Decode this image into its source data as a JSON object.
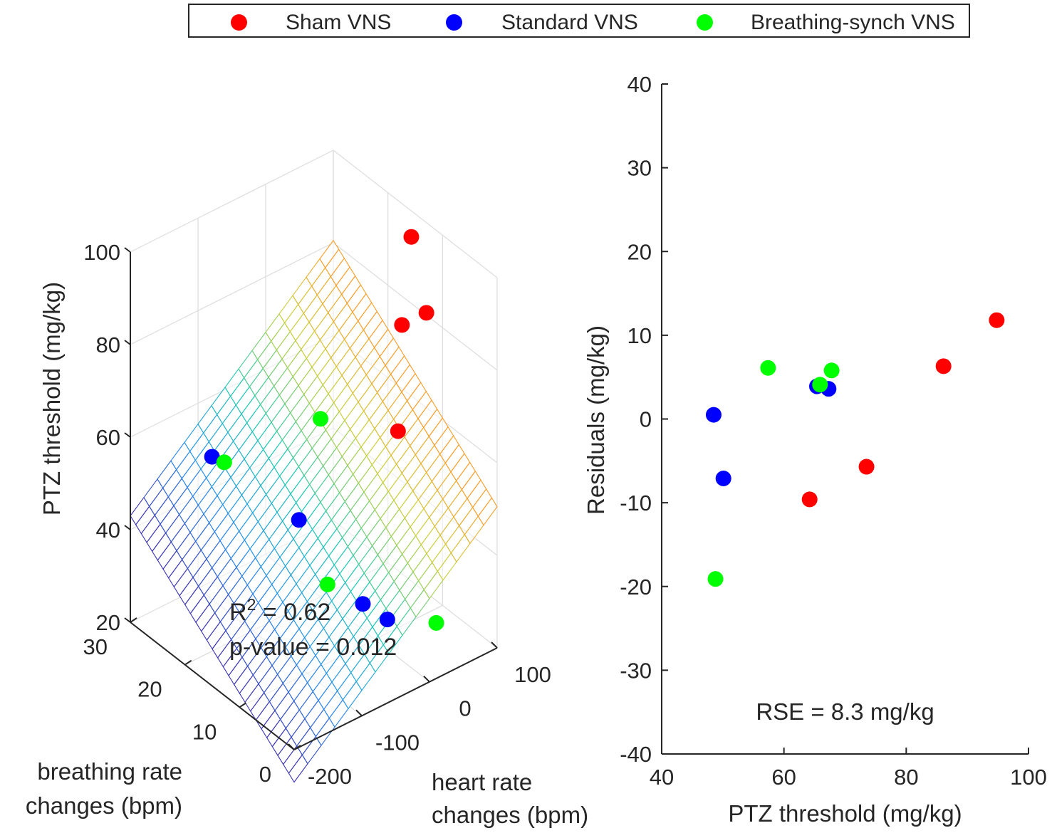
{
  "legend": {
    "items": [
      {
        "label": "Sham VNS",
        "color": "#ff0000"
      },
      {
        "label": "Standard VNS",
        "color": "#0000ff"
      },
      {
        "label": "Breathing-synch VNS",
        "color": "#00ff00"
      }
    ]
  },
  "chart_data": [
    {
      "type": "scatter3d",
      "title": "",
      "zlabel": "PTZ threshold (mg/kg)",
      "xlabel": "heart rate changes (bpm)",
      "ylabel": "breathing rate changes (bpm)",
      "xlabel_lines": [
        "heart rate",
        "changes (bpm)"
      ],
      "ylabel_lines": [
        "breathing rate",
        "changes (bpm)"
      ],
      "xlim": [
        -200,
        100
      ],
      "ylim": [
        0,
        30
      ],
      "zlim": [
        20,
        100
      ],
      "xticks": [
        "-200",
        "-100",
        "0",
        "100"
      ],
      "yticks": [
        "0",
        "10",
        "20",
        "30"
      ],
      "zticks": [
        "20",
        "40",
        "60",
        "80",
        "100"
      ],
      "annotation": {
        "r2_prefix": "R",
        "r2_sup": "2",
        "r2_value": " = 0.62",
        "pvalue": "p-value = 0.012"
      },
      "fitted_plane": {
        "description": "linear regression surface",
        "colormap": "parula-jet"
      },
      "series": [
        {
          "name": "Sham VNS",
          "color": "#ff0000",
          "points": [
            {
              "hr": 70,
              "br": 12,
              "ptz": 100
            },
            {
              "hr": 60,
              "br": 8,
              "ptz": 88
            },
            {
              "hr": 40,
              "br": 10,
              "ptz": 85
            },
            {
              "hr": 10,
              "br": 7,
              "ptz": 67
            }
          ]
        },
        {
          "name": "Standard VNS",
          "color": "#0000ff",
          "points": [
            {
              "hr": -160,
              "br": 20,
              "ptz": 62
            },
            {
              "hr": -80,
              "br": 14,
              "ptz": 48
            },
            {
              "hr": -50,
              "br": 6,
              "ptz": 35
            },
            {
              "hr": -30,
              "br": 4,
              "ptz": 32
            }
          ]
        },
        {
          "name": "Breathing-synch VNS",
          "color": "#00ff00",
          "points": [
            {
              "hr": -150,
              "br": 19,
              "ptz": 61
            },
            {
              "hr": -40,
              "br": 15,
              "ptz": 66
            },
            {
              "hr": -70,
              "br": 10,
              "ptz": 37
            },
            {
              "hr": 10,
              "br": 0,
              "ptz": 32
            }
          ]
        }
      ]
    },
    {
      "type": "scatter",
      "title": "",
      "xlabel": "PTZ threshold (mg/kg)",
      "ylabel": "Residuals (mg/kg)",
      "xlim": [
        40,
        100
      ],
      "ylim": [
        -40,
        40
      ],
      "xticks": [
        "40",
        "60",
        "80",
        "100"
      ],
      "yticks": [
        "-40",
        "-30",
        "-20",
        "-10",
        "0",
        "10",
        "20",
        "30",
        "40"
      ],
      "annotation": "RSE = 8.3 mg/kg",
      "series": [
        {
          "name": "Sham VNS",
          "color": "#ff0000",
          "points": [
            [
              94.8,
              11.8
            ],
            [
              86.1,
              6.3
            ],
            [
              73.5,
              -5.7
            ],
            [
              64.2,
              -9.6
            ]
          ]
        },
        {
          "name": "Standard VNS",
          "color": "#0000ff",
          "points": [
            [
              48.5,
              0.5
            ],
            [
              50.1,
              -7.1
            ],
            [
              65.4,
              3.9
            ],
            [
              67.3,
              3.6
            ]
          ]
        },
        {
          "name": "Breathing-synch VNS",
          "color": "#00ff00",
          "points": [
            [
              57.4,
              6.1
            ],
            [
              65.9,
              4.1
            ],
            [
              67.8,
              5.8
            ],
            [
              48.8,
              -19.1
            ]
          ]
        }
      ]
    }
  ]
}
